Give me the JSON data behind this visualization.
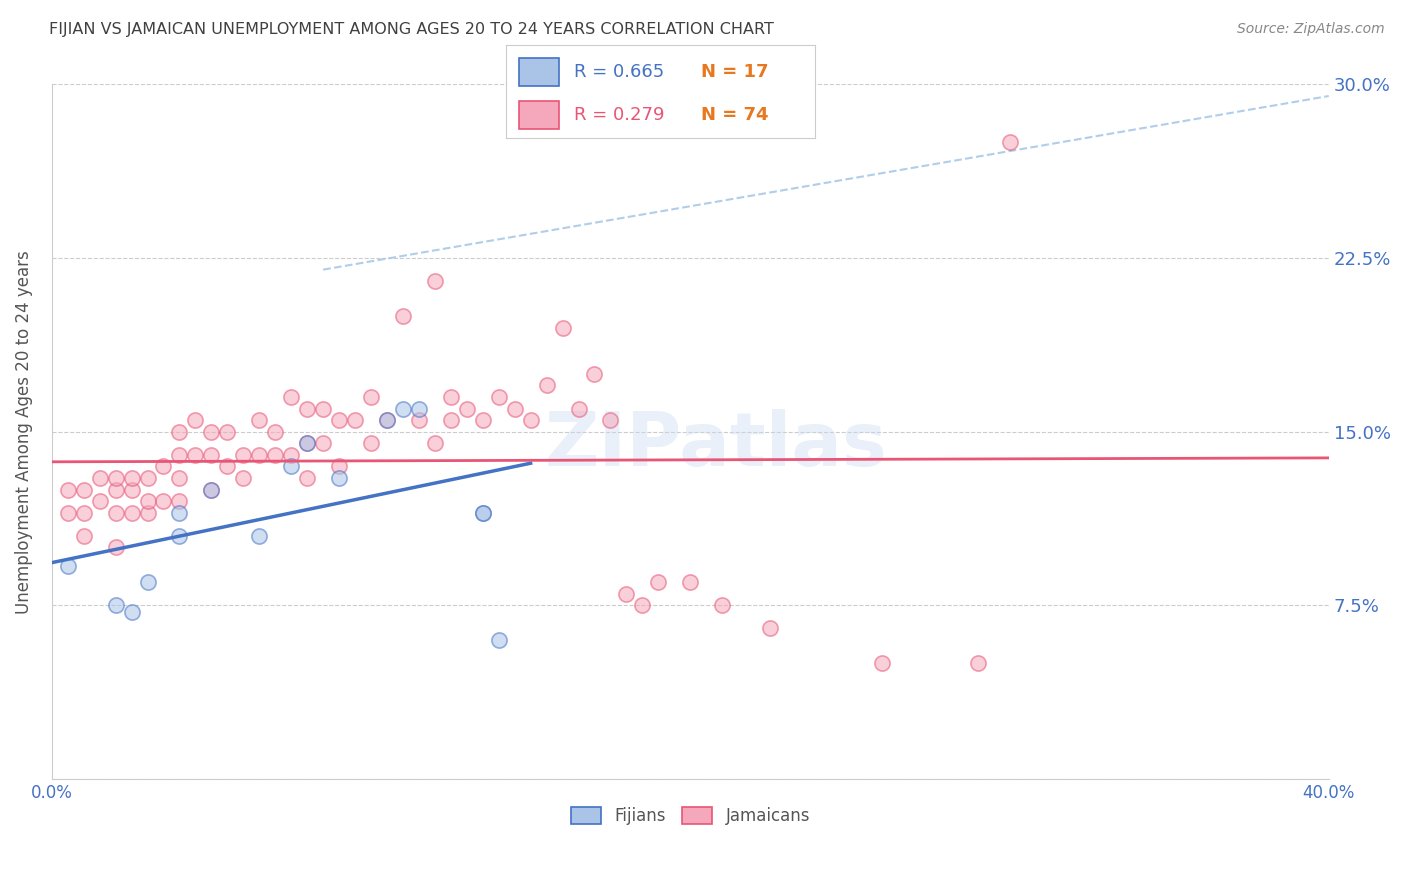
{
  "title": "FIJIAN VS JAMAICAN UNEMPLOYMENT AMONG AGES 20 TO 24 YEARS CORRELATION CHART",
  "source": "Source: ZipAtlas.com",
  "ylabel": "Unemployment Among Ages 20 to 24 years",
  "xlim": [
    0.0,
    0.4
  ],
  "ylim": [
    0.0,
    0.3
  ],
  "xticks": [
    0.0,
    0.05,
    0.1,
    0.15,
    0.2,
    0.25,
    0.3,
    0.35,
    0.4
  ],
  "yticks": [
    0.0,
    0.075,
    0.15,
    0.225,
    0.3
  ],
  "ytick_labels_right": [
    "",
    "7.5%",
    "15.0%",
    "22.5%",
    "30.0%"
  ],
  "xtick_labels": [
    "0.0%",
    "",
    "",
    "",
    "",
    "",
    "",
    "",
    "40.0%"
  ],
  "fijian_color": "#aac4e8",
  "jamaican_color": "#f5a8bc",
  "fijian_line_color": "#4472c4",
  "jamaican_line_color": "#e85575",
  "diagonal_line_color": "#a8c8e8",
  "legend_fijian_r": "R = 0.665",
  "legend_fijian_n": "N = 17",
  "legend_jamaican_r": "R = 0.279",
  "legend_jamaican_n": "N = 74",
  "watermark": "ZIPatlas",
  "fijian_x": [
    0.005,
    0.02,
    0.025,
    0.03,
    0.04,
    0.04,
    0.05,
    0.065,
    0.075,
    0.08,
    0.09,
    0.105,
    0.11,
    0.115,
    0.135,
    0.135,
    0.14
  ],
  "fijian_y": [
    0.092,
    0.075,
    0.072,
    0.085,
    0.105,
    0.115,
    0.125,
    0.105,
    0.135,
    0.145,
    0.13,
    0.155,
    0.16,
    0.16,
    0.115,
    0.115,
    0.06
  ],
  "jamaican_x": [
    0.005,
    0.005,
    0.01,
    0.01,
    0.01,
    0.015,
    0.015,
    0.02,
    0.02,
    0.02,
    0.02,
    0.025,
    0.025,
    0.025,
    0.03,
    0.03,
    0.03,
    0.035,
    0.035,
    0.04,
    0.04,
    0.04,
    0.04,
    0.045,
    0.045,
    0.05,
    0.05,
    0.05,
    0.055,
    0.055,
    0.06,
    0.06,
    0.065,
    0.065,
    0.07,
    0.07,
    0.075,
    0.075,
    0.08,
    0.08,
    0.08,
    0.085,
    0.085,
    0.09,
    0.09,
    0.095,
    0.1,
    0.1,
    0.105,
    0.11,
    0.115,
    0.12,
    0.12,
    0.125,
    0.125,
    0.13,
    0.135,
    0.14,
    0.145,
    0.15,
    0.155,
    0.16,
    0.165,
    0.17,
    0.175,
    0.18,
    0.185,
    0.19,
    0.2,
    0.21,
    0.225,
    0.26,
    0.29,
    0.3
  ],
  "jamaican_y": [
    0.115,
    0.125,
    0.105,
    0.115,
    0.125,
    0.12,
    0.13,
    0.1,
    0.115,
    0.125,
    0.13,
    0.115,
    0.125,
    0.13,
    0.115,
    0.12,
    0.13,
    0.12,
    0.135,
    0.12,
    0.13,
    0.14,
    0.15,
    0.14,
    0.155,
    0.125,
    0.14,
    0.15,
    0.135,
    0.15,
    0.13,
    0.14,
    0.14,
    0.155,
    0.14,
    0.15,
    0.14,
    0.165,
    0.13,
    0.145,
    0.16,
    0.145,
    0.16,
    0.135,
    0.155,
    0.155,
    0.145,
    0.165,
    0.155,
    0.2,
    0.155,
    0.145,
    0.215,
    0.155,
    0.165,
    0.16,
    0.155,
    0.165,
    0.16,
    0.155,
    0.17,
    0.195,
    0.16,
    0.175,
    0.155,
    0.08,
    0.075,
    0.085,
    0.085,
    0.075,
    0.065,
    0.05,
    0.05,
    0.275
  ],
  "background_color": "#ffffff",
  "grid_color": "#cccccc",
  "title_color": "#404040",
  "axis_label_color": "#555555",
  "tick_label_color": "#4472c4",
  "n_color": "#e87820",
  "marker_size": 120,
  "marker_alpha": 0.55,
  "marker_linewidth": 1.2
}
